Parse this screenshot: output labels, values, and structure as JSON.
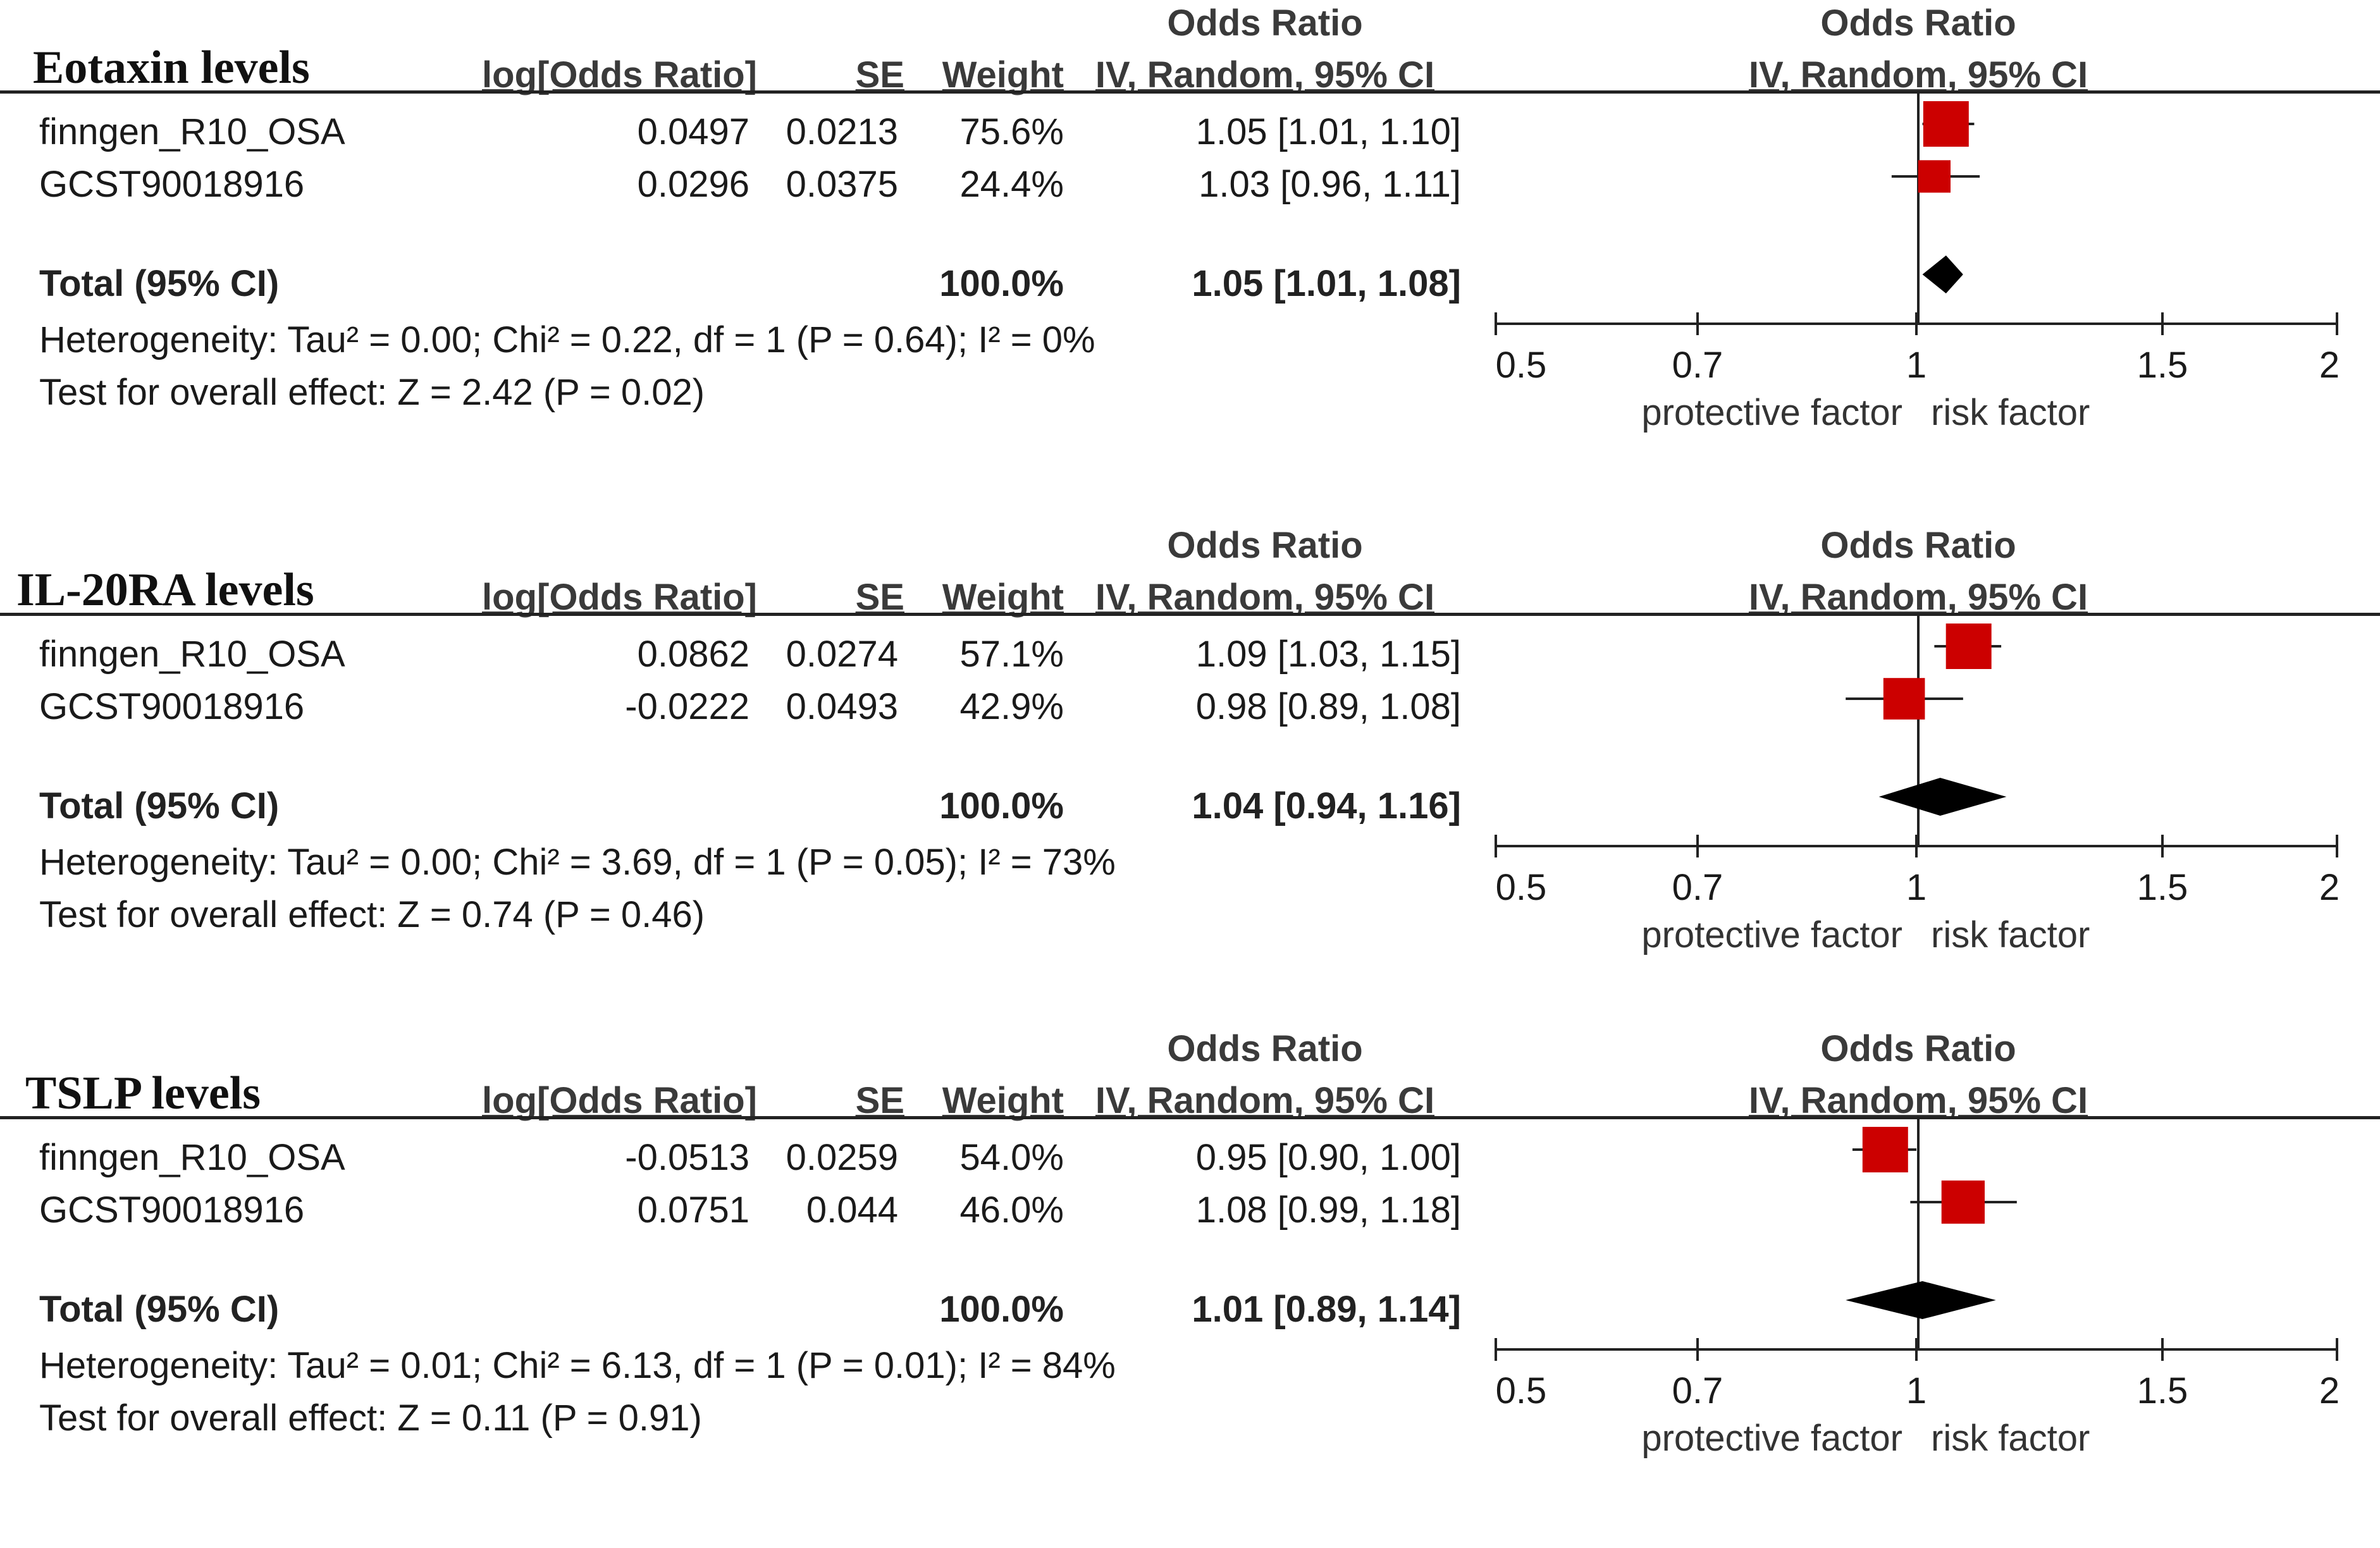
{
  "colors": {
    "marker": "#cc0000",
    "summary": "#000000",
    "line": "#222222",
    "text": "#1a1a1a"
  },
  "headers": {
    "log_or": "log[Odds Ratio]",
    "se": "SE",
    "weight": "Weight",
    "or_top": "Odds Ratio",
    "or_bottom": "IV, Random, 95% CI"
  },
  "axis": {
    "ticks": [
      "0.5",
      "0.7",
      "1",
      "1.5",
      "2"
    ],
    "tick_values": [
      0.5,
      0.7,
      1,
      1.5,
      2
    ],
    "left_label": "protective factor",
    "right_label": "risk factor"
  },
  "panels": [
    {
      "title": "Eotaxin levels",
      "studies": [
        {
          "name": "finngen_R10_OSA",
          "log_or": "0.0497",
          "se": "0.0213",
          "weight": "75.6%",
          "ci_text": "1.05 [1.01, 1.10]"
        },
        {
          "name": "GCST90018916",
          "log_or": "0.0296",
          "se": "0.0375",
          "weight": "24.4%",
          "ci_text": "1.03 [0.96, 1.11]"
        }
      ],
      "total": {
        "label": "Total (95% CI)",
        "weight": "100.0%",
        "ci_text": "1.05 [1.01, 1.08]"
      },
      "heterogeneity": "Heterogeneity: Tau² = 0.00; Chi² = 0.22, df = 1 (P = 0.64); I² = 0%",
      "overall": "Test for overall effect: Z = 2.42 (P = 0.02)"
    },
    {
      "title": "IL-20RA levels",
      "studies": [
        {
          "name": "finngen_R10_OSA",
          "log_or": "0.0862",
          "se": "0.0274",
          "weight": "57.1%",
          "ci_text": "1.09 [1.03, 1.15]"
        },
        {
          "name": "GCST90018916",
          "log_or": "-0.0222",
          "se": "0.0493",
          "weight": "42.9%",
          "ci_text": "0.98 [0.89, 1.08]"
        }
      ],
      "total": {
        "label": "Total (95% CI)",
        "weight": "100.0%",
        "ci_text": "1.04 [0.94, 1.16]"
      },
      "heterogeneity": "Heterogeneity: Tau² = 0.00; Chi² = 3.69, df = 1 (P = 0.05); I² = 73%",
      "overall": "Test for overall effect: Z = 0.74 (P = 0.46)"
    },
    {
      "title": "TSLP levels",
      "studies": [
        {
          "name": "finngen_R10_OSA",
          "log_or": "-0.0513",
          "se": "0.0259",
          "weight": "54.0%",
          "ci_text": "0.95 [0.90, 1.00]"
        },
        {
          "name": "GCST90018916",
          "log_or": "0.0751",
          "se": "0.044",
          "weight": "46.0%",
          "ci_text": "1.08 [0.99, 1.18]"
        }
      ],
      "total": {
        "label": "Total (95% CI)",
        "weight": "100.0%",
        "ci_text": "1.01 [0.89, 1.14]"
      },
      "heterogeneity": "Heterogeneity: Tau² = 0.01; Chi² = 6.13, df = 1 (P = 0.01); I² = 84%",
      "overall": "Test for overall effect: Z = 0.11 (P = 0.91)"
    }
  ],
  "chart_data": [
    {
      "type": "forest",
      "title": "Eotaxin levels",
      "xscale": "log",
      "xlim": [
        0.5,
        2
      ],
      "xticks": [
        0.5,
        0.7,
        1,
        1.5,
        2
      ],
      "reference_line": 1,
      "studies": [
        {
          "name": "finngen_R10_OSA",
          "or": 1.05,
          "lower": 1.01,
          "upper": 1.1,
          "weight": 75.6
        },
        {
          "name": "GCST90018916",
          "or": 1.03,
          "lower": 0.96,
          "upper": 1.11,
          "weight": 24.4
        }
      ],
      "pooled": {
        "or": 1.05,
        "lower": 1.01,
        "upper": 1.08
      }
    },
    {
      "type": "forest",
      "title": "IL-20RA levels",
      "xscale": "log",
      "xlim": [
        0.5,
        2
      ],
      "xticks": [
        0.5,
        0.7,
        1,
        1.5,
        2
      ],
      "reference_line": 1,
      "studies": [
        {
          "name": "finngen_R10_OSA",
          "or": 1.09,
          "lower": 1.03,
          "upper": 1.15,
          "weight": 57.1
        },
        {
          "name": "GCST90018916",
          "or": 0.98,
          "lower": 0.89,
          "upper": 1.08,
          "weight": 42.9
        }
      ],
      "pooled": {
        "or": 1.04,
        "lower": 0.94,
        "upper": 1.16
      }
    },
    {
      "type": "forest",
      "title": "TSLP levels",
      "xscale": "log",
      "xlim": [
        0.5,
        2
      ],
      "xticks": [
        0.5,
        0.7,
        1,
        1.5,
        2
      ],
      "reference_line": 1,
      "studies": [
        {
          "name": "finngen_R10_OSA",
          "or": 0.95,
          "lower": 0.9,
          "upper": 1.0,
          "weight": 54.0
        },
        {
          "name": "GCST90018916",
          "or": 1.08,
          "lower": 0.99,
          "upper": 1.18,
          "weight": 46.0
        }
      ],
      "pooled": {
        "or": 1.01,
        "lower": 0.89,
        "upper": 1.14
      }
    }
  ]
}
